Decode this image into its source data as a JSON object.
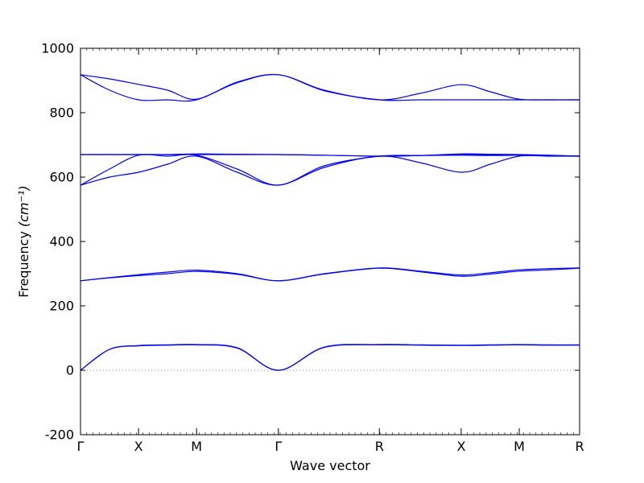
{
  "chart_data": {
    "type": "line",
    "title": "",
    "xlabel": "Wave vector",
    "ylabel_prefix": "Frequency ",
    "ylabel_unit": "(cm⁻¹)",
    "ylim": [
      -200,
      1000
    ],
    "yticks": [
      -200,
      0,
      200,
      400,
      600,
      800,
      1000
    ],
    "xlim": [
      0,
      8.6
    ],
    "xticks": [
      {
        "label": "Γ",
        "x": 0
      },
      {
        "label": "X",
        "x": 1
      },
      {
        "label": "M",
        "x": 2
      },
      {
        "label": "Γ",
        "x": 3.41
      },
      {
        "label": "R",
        "x": 5.15
      },
      {
        "label": "X",
        "x": 6.56
      },
      {
        "label": "M",
        "x": 7.56
      },
      {
        "label": "R",
        "x": 8.6
      }
    ],
    "zero_line": 0,
    "line_color": "#0000ee",
    "bands": [
      {
        "x": [
          0,
          0.5,
          1,
          1.5,
          2,
          2.7,
          3.41,
          4.2,
          5.15,
          5.85,
          6.56,
          7.06,
          7.56,
          8.1,
          8.6
        ],
        "y": [
          0,
          65,
          77,
          79,
          80,
          70,
          0,
          72,
          80,
          79,
          78,
          79,
          80,
          79,
          79
        ]
      },
      {
        "x": [
          0,
          0.5,
          1,
          1.5,
          2,
          2.7,
          3.41,
          4.2,
          5.15,
          5.85,
          6.56,
          7.06,
          7.56,
          8.1,
          8.6
        ],
        "y": [
          0,
          65,
          76,
          78,
          79,
          69,
          0,
          71,
          79,
          78,
          77,
          78,
          79,
          78,
          78
        ]
      },
      {
        "x": [
          0,
          0.5,
          1,
          1.5,
          2,
          2.7,
          3.41,
          4.2,
          5.15,
          5.85,
          6.56,
          7.06,
          7.56,
          8.1,
          8.6
        ],
        "y": [
          278,
          288,
          297,
          305,
          311,
          300,
          278,
          300,
          318,
          308,
          296,
          303,
          312,
          316,
          318
        ]
      },
      {
        "x": [
          0,
          0.5,
          1,
          1.5,
          2,
          2.7,
          3.41,
          4.2,
          5.15,
          5.85,
          6.56,
          7.06,
          7.56,
          8.1,
          8.6
        ],
        "y": [
          278,
          287,
          294,
          300,
          307,
          298,
          278,
          299,
          317,
          306,
          292,
          299,
          308,
          312,
          317
        ]
      },
      {
        "x": [
          0,
          0.5,
          1,
          1.5,
          2,
          2.7,
          3.41,
          4.2,
          5.15,
          5.85,
          6.56,
          7.06,
          7.56,
          8.1,
          8.6
        ],
        "y": [
          575,
          600,
          615,
          640,
          665,
          615,
          575,
          630,
          665,
          645,
          615,
          640,
          665,
          665,
          665
        ]
      },
      {
        "x": [
          0,
          0.5,
          1,
          1.5,
          2,
          2.7,
          3.41,
          4.2,
          5.15,
          5.85,
          6.56,
          7.06,
          7.56,
          8.1,
          8.6
        ],
        "y": [
          575,
          625,
          668,
          665,
          668,
          625,
          575,
          635,
          665,
          667,
          668,
          667,
          668,
          666,
          665
        ]
      },
      {
        "x": [
          0,
          0.5,
          1,
          1.5,
          2,
          2.7,
          3.41,
          4.2,
          5.15,
          5.85,
          6.56,
          7.06,
          7.56,
          8.1,
          8.6
        ],
        "y": [
          670,
          670,
          670,
          670,
          670,
          670,
          670,
          668,
          665,
          667,
          670,
          669,
          668,
          667,
          665
        ]
      },
      {
        "x": [
          0,
          0.5,
          1,
          1.5,
          2,
          2.7,
          3.41,
          4.2,
          5.15,
          5.85,
          6.56,
          7.06,
          7.56,
          8.1,
          8.6
        ],
        "y": [
          670,
          670,
          670,
          670,
          672,
          671,
          670,
          668,
          665,
          667,
          672,
          671,
          670,
          668,
          665
        ]
      },
      {
        "x": [
          0,
          0.5,
          1,
          1.5,
          2,
          2.7,
          3.41,
          4.2,
          5.15,
          5.85,
          6.56,
          7.06,
          7.56,
          8.1,
          8.6
        ],
        "y": [
          918,
          905,
          888,
          870,
          842,
          895,
          918,
          870,
          840,
          860,
          887,
          865,
          842,
          840,
          840
        ]
      },
      {
        "x": [
          0,
          0.5,
          1,
          1.5,
          2,
          2.7,
          3.41,
          4.2,
          5.15,
          5.85,
          6.56,
          7.06,
          7.56,
          8.1,
          8.6
        ],
        "y": [
          918,
          870,
          840,
          840,
          840,
          893,
          918,
          868,
          840,
          840,
          840,
          840,
          840,
          840,
          840
        ]
      }
    ]
  }
}
